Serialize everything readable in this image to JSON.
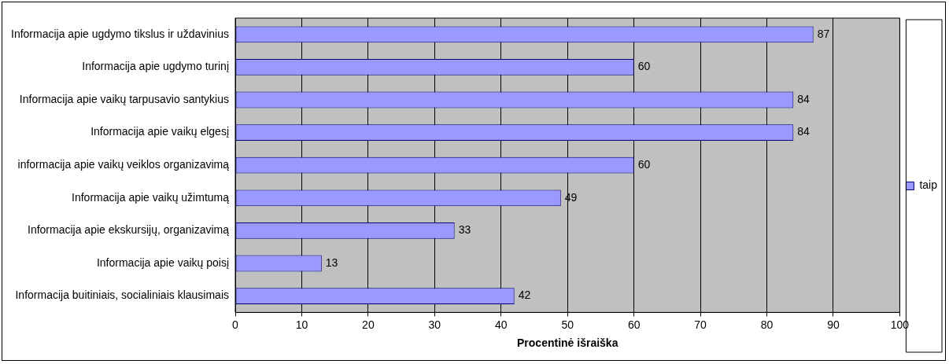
{
  "chart_data": {
    "type": "bar",
    "orientation": "horizontal",
    "xlabel": "Procentinė išraiška",
    "categories": [
      "Informacija apie ugdymo tikslus ir uždavinius",
      "Informacija apie ugdymo turinį",
      "Informacija apie vaikų tarpusavio santykius",
      "Informacija apie vaikų elgesį",
      "informacija apie vaikų veiklos organizavimą",
      "Informacija apie vaikų užimtumą",
      "Informacija apie ekskursijų, organizavimą",
      "Informacija apie vaikų poisį",
      "Informacija buitiniais, socialiniais klausimais"
    ],
    "series": [
      {
        "name": "taip",
        "color": "#9999ff",
        "values": [
          87,
          60,
          84,
          84,
          60,
          49,
          33,
          13,
          42
        ]
      }
    ],
    "xlim": [
      0,
      100
    ],
    "xticks": [
      0,
      10,
      20,
      30,
      40,
      50,
      60,
      70,
      80,
      90,
      100
    ],
    "grid": "x",
    "legend": "right",
    "data_labels": true
  }
}
